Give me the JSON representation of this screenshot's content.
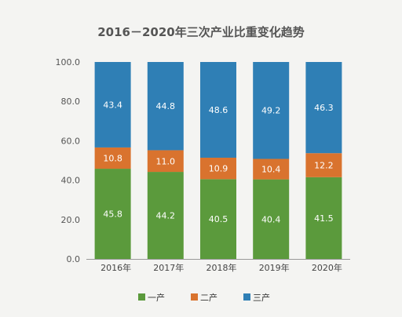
{
  "chart_data": {
    "type": "bar",
    "stacked": true,
    "title": "2016－2020年三次产业比重变化趋势",
    "categories": [
      "2016年",
      "2017年",
      "2018年",
      "2019年",
      "2020年"
    ],
    "ylim": [
      0,
      100
    ],
    "yticks": [
      "0.0",
      "20.0",
      "40.0",
      "60.0",
      "80.0",
      "100.0"
    ],
    "grid": false,
    "legend_position": "bottom",
    "series": [
      {
        "name": "一产",
        "color": "#5b9a3c",
        "values": [
          45.8,
          44.2,
          40.5,
          40.4,
          41.5
        ],
        "labels": [
          "45.8",
          "44.2",
          "40.5",
          "40.4",
          "41.5"
        ]
      },
      {
        "name": "二产",
        "color": "#d9732e",
        "values": [
          10.8,
          11.0,
          10.9,
          10.4,
          12.2
        ],
        "labels": [
          "10.8",
          "11.0",
          "10.9",
          "10.4",
          "12.2"
        ]
      },
      {
        "name": "三产",
        "color": "#2f7fb5",
        "values": [
          43.4,
          44.8,
          48.6,
          49.2,
          46.3
        ],
        "labels": [
          "43.4",
          "44.8",
          "48.6",
          "49.2",
          "46.3"
        ]
      }
    ]
  }
}
